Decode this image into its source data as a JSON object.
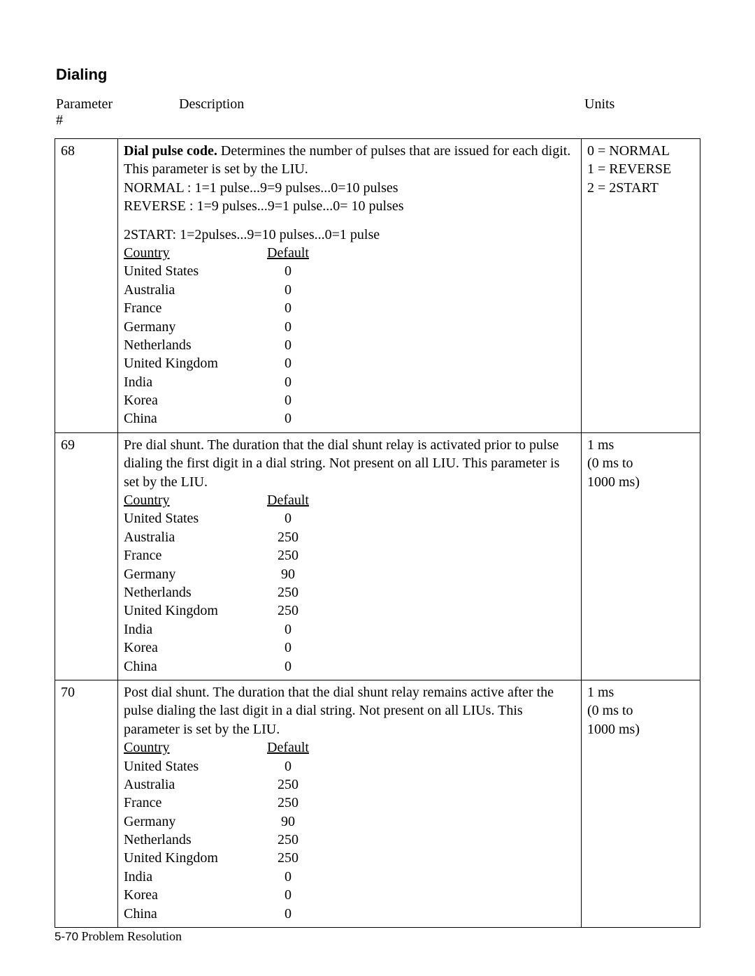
{
  "section_title": "Dialing",
  "headers": {
    "param": "Parameter #",
    "desc": "Description",
    "units": "Units"
  },
  "rows": [
    {
      "param": "68",
      "desc_lead_bold": "Dial pulse code.",
      "desc_lead_rest": " Determines the number of pulses that are issued for each digit. This parameter is set by the LIU.",
      "modes": [
        "NORMAL :  1=1 pulse...9=9 pulses...0=10 pulses",
        "REVERSE : 1=9 pulses...9=1 pulse...0= 10 pulses"
      ],
      "modes2": [
        "2START:   1=2pulses...9=10 pulses...0=1 pulse"
      ],
      "country_hdr": "Country",
      "default_hdr": "Default",
      "countries": [
        {
          "name": "United States",
          "val": "0"
        },
        {
          "name": "Australia",
          "val": "0"
        },
        {
          "name": "France",
          "val": "0"
        },
        {
          "name": "Germany",
          "val": "0"
        },
        {
          "name": "Netherlands",
          "val": "0"
        },
        {
          "name": "United Kingdom",
          "val": "0"
        },
        {
          "name": "India",
          "val": "0"
        },
        {
          "name": "Korea",
          "val": "0"
        },
        {
          "name": "China",
          "val": "0"
        }
      ],
      "units": [
        "0 = NORMAL",
        "1 = REVERSE",
        "2 = 2START"
      ]
    },
    {
      "param": "69",
      "desc_lead_bold": "",
      "desc_lead_rest": "Pre dial shunt. The duration that the dial shunt relay is activated prior to pulse dialing the first digit in a dial string. Not present on all LIU. This parameter is set by the LIU.",
      "country_hdr": "Country",
      "default_hdr": "Default",
      "countries": [
        {
          "name": "United States",
          "val": "0"
        },
        {
          "name": "Australia",
          "val": "250"
        },
        {
          "name": "France",
          "val": "250"
        },
        {
          "name": "Germany",
          "val": "90"
        },
        {
          "name": "Netherlands",
          "val": "250"
        },
        {
          "name": "United Kingdom",
          "val": "250"
        },
        {
          "name": "India",
          "val": "0"
        },
        {
          "name": "Korea",
          "val": "0"
        },
        {
          "name": "China",
          "val": "0"
        }
      ],
      "units": [
        "1 ms",
        "(0 ms to",
        "1000 ms)"
      ]
    },
    {
      "param": "70",
      "desc_lead_bold": "",
      "desc_lead_rest": "Post dial shunt. The duration that the dial shunt relay remains active after the pulse dialing the last digit in a dial string. Not present on all LIUs. This parameter is set by the LIU.",
      "country_hdr": "Country",
      "default_hdr": "Default",
      "countries": [
        {
          "name": "United States",
          "val": "0"
        },
        {
          "name": "Australia",
          "val": "250"
        },
        {
          "name": "France",
          "val": "250"
        },
        {
          "name": "Germany",
          "val": "90"
        },
        {
          "name": "Netherlands",
          "val": "250"
        },
        {
          "name": "United Kingdom",
          "val": "250"
        },
        {
          "name": "India",
          "val": "0"
        },
        {
          "name": "Korea",
          "val": "0"
        },
        {
          "name": "China",
          "val": "0"
        }
      ],
      "units": [
        "1 ms",
        "(0 ms to",
        "1000 ms)"
      ]
    }
  ],
  "footer": {
    "page": "5-70",
    "label": " Problem Resolution"
  }
}
